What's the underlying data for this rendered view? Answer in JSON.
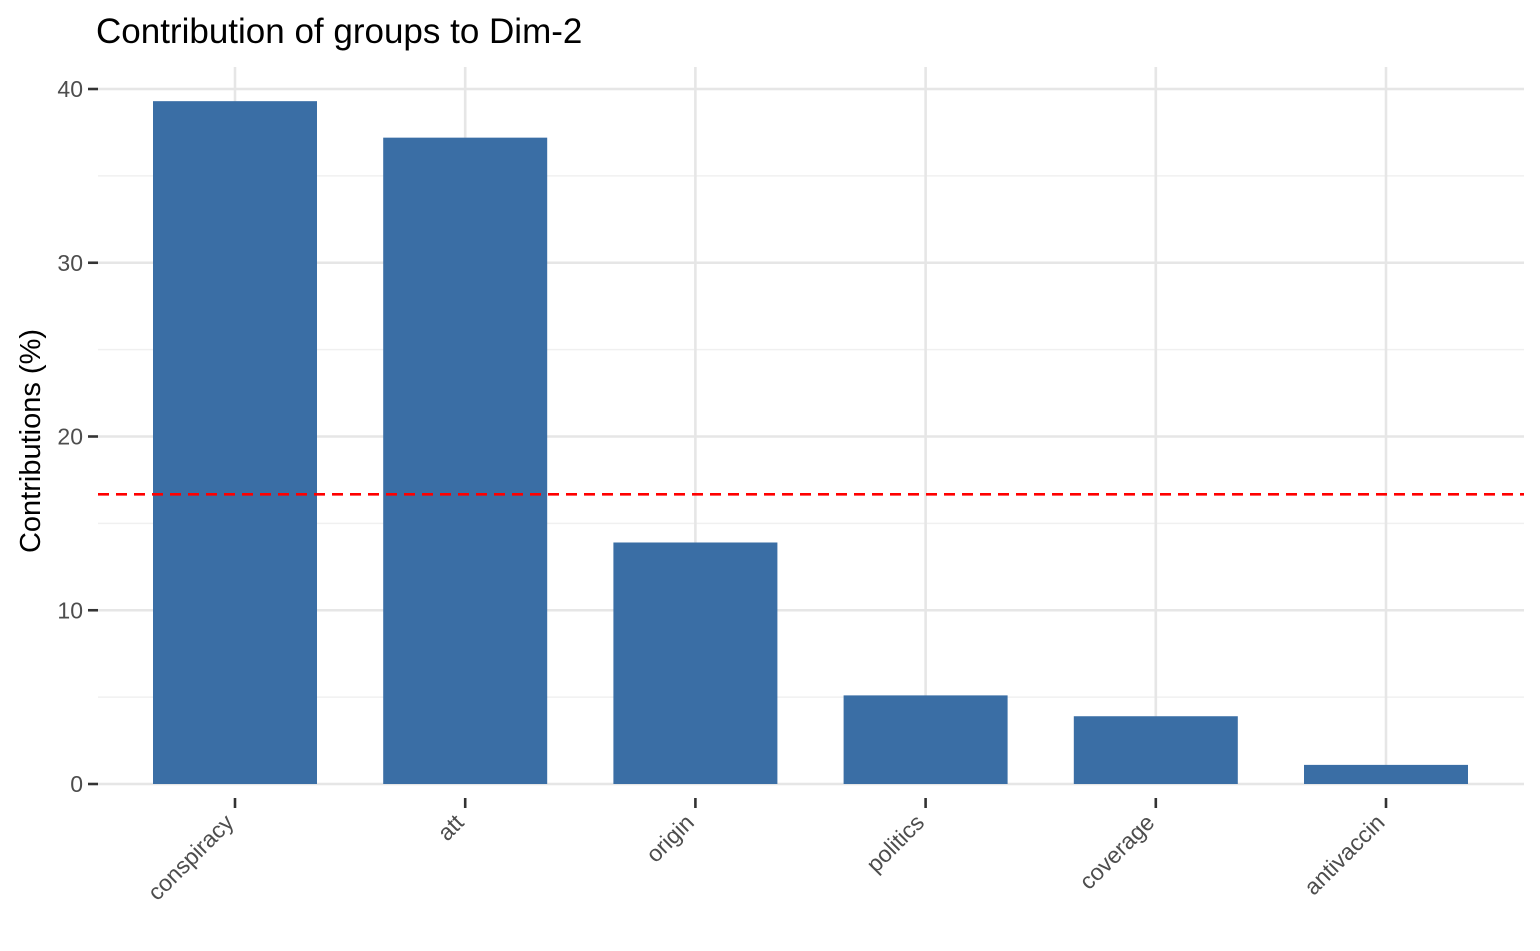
{
  "chart_data": {
    "type": "bar",
    "title": "Contribution of groups to Dim-2",
    "xlabel": "",
    "ylabel": "Contributions (%)",
    "categories": [
      "conspiracy",
      "att",
      "origin",
      "politics",
      "coverage",
      "antivaccin"
    ],
    "values": [
      39.3,
      37.2,
      13.9,
      5.1,
      3.9,
      1.1
    ],
    "ylim": [
      0,
      40.5
    ],
    "yticks": [
      0,
      10,
      20,
      30,
      40
    ],
    "reference_line": 16.67,
    "grid": true,
    "legend": "none",
    "colors": {
      "bar": "#3A6EA5",
      "reference_line": "#FF0000",
      "grid": "#E6E6E6"
    }
  }
}
